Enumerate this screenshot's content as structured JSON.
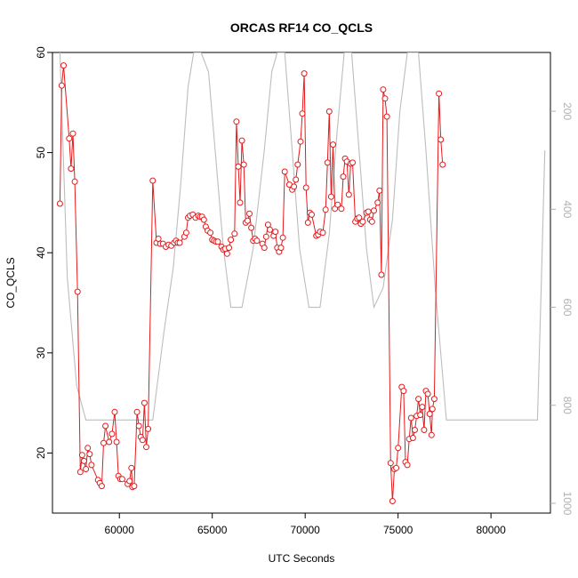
{
  "chart_data": {
    "type": "line",
    "title": "ORCAS RF14 CO_QCLS",
    "xlabel": "UTC Seconds",
    "ylabel": "CO_QCLS",
    "xlim": [
      56400,
      83200
    ],
    "ylim": [
      14,
      60
    ],
    "x_ticks": [
      60000,
      65000,
      70000,
      75000,
      80000
    ],
    "y_ticks": [
      20,
      30,
      40,
      50,
      60
    ],
    "y2_ticks": [
      200,
      400,
      600,
      800,
      1000
    ],
    "y2_range_bottom_top": [
      1020,
      80
    ],
    "grid": false,
    "colors": {
      "primary": "#e41a1c",
      "secondary": "#bdbdbd",
      "axis": "#000000",
      "axis_right": "#b0b0b0"
    },
    "series": [
      {
        "values_xy": [
          [
            56800,
            44.9
          ],
          [
            56900,
            56.7
          ],
          [
            57000,
            58.7
          ],
          [
            57300,
            51.4
          ],
          [
            57400,
            48.4
          ],
          [
            57500,
            51.9
          ],
          [
            57600,
            47.1
          ],
          [
            57750,
            36.1
          ],
          [
            57900,
            18.1
          ],
          [
            58000,
            19.8
          ],
          [
            58100,
            19.2
          ],
          [
            58200,
            18.4
          ],
          [
            58300,
            20.5
          ],
          [
            58400,
            19.9
          ],
          [
            58500,
            18.8
          ],
          [
            58850,
            17.3
          ],
          [
            58950,
            17.0
          ],
          [
            59050,
            16.7
          ],
          [
            59150,
            21.0
          ],
          [
            59250,
            22.7
          ],
          [
            59450,
            21.1
          ],
          [
            59600,
            21.9
          ],
          [
            59750,
            24.1
          ],
          [
            59850,
            21.1
          ],
          [
            59950,
            17.7
          ],
          [
            60050,
            17.4
          ],
          [
            60150,
            17.4
          ],
          [
            60450,
            16.9
          ],
          [
            60550,
            17.2
          ],
          [
            60650,
            18.5
          ],
          [
            60700,
            16.6
          ],
          [
            60800,
            16.7
          ],
          [
            60950,
            24.1
          ],
          [
            61050,
            22.7
          ],
          [
            61150,
            21.6
          ],
          [
            61250,
            21.3
          ],
          [
            61350,
            25.0
          ],
          [
            61450,
            20.6
          ],
          [
            61550,
            22.4
          ],
          [
            61800,
            47.2
          ],
          [
            62000,
            41.0
          ],
          [
            62100,
            41.4
          ],
          [
            62200,
            40.9
          ],
          [
            62350,
            40.9
          ],
          [
            62500,
            40.6
          ],
          [
            62650,
            40.8
          ],
          [
            62800,
            40.7
          ],
          [
            62950,
            41.0
          ],
          [
            63050,
            41.2
          ],
          [
            63150,
            41.0
          ],
          [
            63250,
            41.0
          ],
          [
            63500,
            41.6
          ],
          [
            63600,
            42.0
          ],
          [
            63700,
            43.5
          ],
          [
            63800,
            43.7
          ],
          [
            63950,
            43.8
          ],
          [
            64100,
            43.5
          ],
          [
            64250,
            43.7
          ],
          [
            64350,
            43.6
          ],
          [
            64450,
            43.6
          ],
          [
            64550,
            43.3
          ],
          [
            64650,
            42.6
          ],
          [
            64750,
            42.2
          ],
          [
            64900,
            42.0
          ],
          [
            65000,
            41.3
          ],
          [
            65100,
            41.2
          ],
          [
            65200,
            41.1
          ],
          [
            65300,
            41.1
          ],
          [
            65500,
            40.6
          ],
          [
            65600,
            40.3
          ],
          [
            65700,
            40.4
          ],
          [
            65800,
            39.9
          ],
          [
            65900,
            40.5
          ],
          [
            66000,
            41.3
          ],
          [
            66200,
            41.9
          ],
          [
            66300,
            53.1
          ],
          [
            66400,
            48.6
          ],
          [
            66500,
            45.0
          ],
          [
            66600,
            51.2
          ],
          [
            66700,
            48.8
          ],
          [
            66800,
            43.0
          ],
          [
            66900,
            43.2
          ],
          [
            67000,
            43.9
          ],
          [
            67100,
            42.5
          ],
          [
            67200,
            41.2
          ],
          [
            67300,
            41.4
          ],
          [
            67400,
            41.2
          ],
          [
            67700,
            40.9
          ],
          [
            67800,
            40.5
          ],
          [
            67900,
            41.6
          ],
          [
            68000,
            42.8
          ],
          [
            68100,
            42.3
          ],
          [
            68300,
            41.7
          ],
          [
            68400,
            42.1
          ],
          [
            68500,
            40.5
          ],
          [
            68600,
            40.1
          ],
          [
            68700,
            40.5
          ],
          [
            68800,
            41.5
          ],
          [
            68900,
            48.1
          ],
          [
            69150,
            46.8
          ],
          [
            69300,
            46.3
          ],
          [
            69400,
            46.6
          ],
          [
            69500,
            47.3
          ],
          [
            69600,
            48.8
          ],
          [
            69750,
            51.1
          ],
          [
            69850,
            53.9
          ],
          [
            69950,
            57.9
          ],
          [
            70050,
            46.5
          ],
          [
            70150,
            43.0
          ],
          [
            70250,
            44.0
          ],
          [
            70350,
            43.8
          ],
          [
            70600,
            41.7
          ],
          [
            70700,
            41.8
          ],
          [
            70800,
            42.1
          ],
          [
            70950,
            42.0
          ],
          [
            71100,
            44.3
          ],
          [
            71200,
            49.0
          ],
          [
            71300,
            54.1
          ],
          [
            71400,
            45.6
          ],
          [
            71500,
            50.8
          ],
          [
            71600,
            44.4
          ],
          [
            71750,
            44.8
          ],
          [
            71950,
            44.4
          ],
          [
            72050,
            47.6
          ],
          [
            72150,
            49.4
          ],
          [
            72250,
            49.1
          ],
          [
            72350,
            45.8
          ],
          [
            72450,
            48.9
          ],
          [
            72550,
            49.0
          ],
          [
            72700,
            43.1
          ],
          [
            72800,
            43.4
          ],
          [
            72900,
            43.5
          ],
          [
            73000,
            42.9
          ],
          [
            73100,
            43.1
          ],
          [
            73300,
            44.0
          ],
          [
            73400,
            44.1
          ],
          [
            73500,
            43.3
          ],
          [
            73600,
            43.1
          ],
          [
            73700,
            44.2
          ],
          [
            73900,
            45.0
          ],
          [
            74000,
            46.2
          ],
          [
            74100,
            37.8
          ],
          [
            74200,
            56.3
          ],
          [
            74300,
            55.4
          ],
          [
            74400,
            53.6
          ],
          [
            74600,
            19.0
          ],
          [
            74700,
            15.2
          ],
          [
            74800,
            18.4
          ],
          [
            74900,
            18.5
          ],
          [
            75000,
            20.5
          ],
          [
            75200,
            26.6
          ],
          [
            75300,
            26.2
          ],
          [
            75400,
            19.1
          ],
          [
            75500,
            18.8
          ],
          [
            75600,
            21.4
          ],
          [
            75700,
            23.5
          ],
          [
            75800,
            21.5
          ],
          [
            75900,
            22.3
          ],
          [
            76000,
            23.7
          ],
          [
            76100,
            25.4
          ],
          [
            76200,
            23.8
          ],
          [
            76300,
            24.6
          ],
          [
            76400,
            22.3
          ],
          [
            76500,
            26.2
          ],
          [
            76600,
            25.9
          ],
          [
            76700,
            23.9
          ],
          [
            76800,
            21.8
          ],
          [
            76850,
            24.4
          ],
          [
            76950,
            25.4
          ],
          [
            77200,
            55.9
          ],
          [
            77300,
            51.3
          ],
          [
            77400,
            48.8
          ]
        ],
        "x_data_units_note_hidden": ""
      },
      {
        "values_xy": [
          [
            56800,
            80
          ],
          [
            57200,
            540
          ],
          [
            57700,
            760
          ],
          [
            58200,
            830
          ],
          [
            61800,
            830
          ],
          [
            62400,
            650
          ],
          [
            62900,
            520
          ],
          [
            63300,
            350
          ],
          [
            63700,
            150
          ],
          [
            64000,
            80
          ],
          [
            64400,
            80
          ],
          [
            64800,
            120
          ],
          [
            65200,
            300
          ],
          [
            65600,
            480
          ],
          [
            66000,
            600
          ],
          [
            66600,
            600
          ],
          [
            67200,
            480
          ],
          [
            67800,
            280
          ],
          [
            68200,
            120
          ],
          [
            68500,
            80
          ],
          [
            68900,
            80
          ],
          [
            69300,
            280
          ],
          [
            69700,
            480
          ],
          [
            70200,
            600
          ],
          [
            70800,
            600
          ],
          [
            71300,
            450
          ],
          [
            71700,
            250
          ],
          [
            72100,
            80
          ],
          [
            72500,
            80
          ],
          [
            72900,
            280
          ],
          [
            73300,
            480
          ],
          [
            73700,
            600
          ],
          [
            74200,
            560
          ],
          [
            74700,
            420
          ],
          [
            75100,
            200
          ],
          [
            75500,
            80
          ],
          [
            76100,
            80
          ],
          [
            76500,
            280
          ],
          [
            77000,
            560
          ],
          [
            77600,
            830
          ],
          [
            82500,
            830
          ],
          [
            82700,
            560
          ],
          [
            82900,
            280
          ]
        ]
      }
    ]
  }
}
